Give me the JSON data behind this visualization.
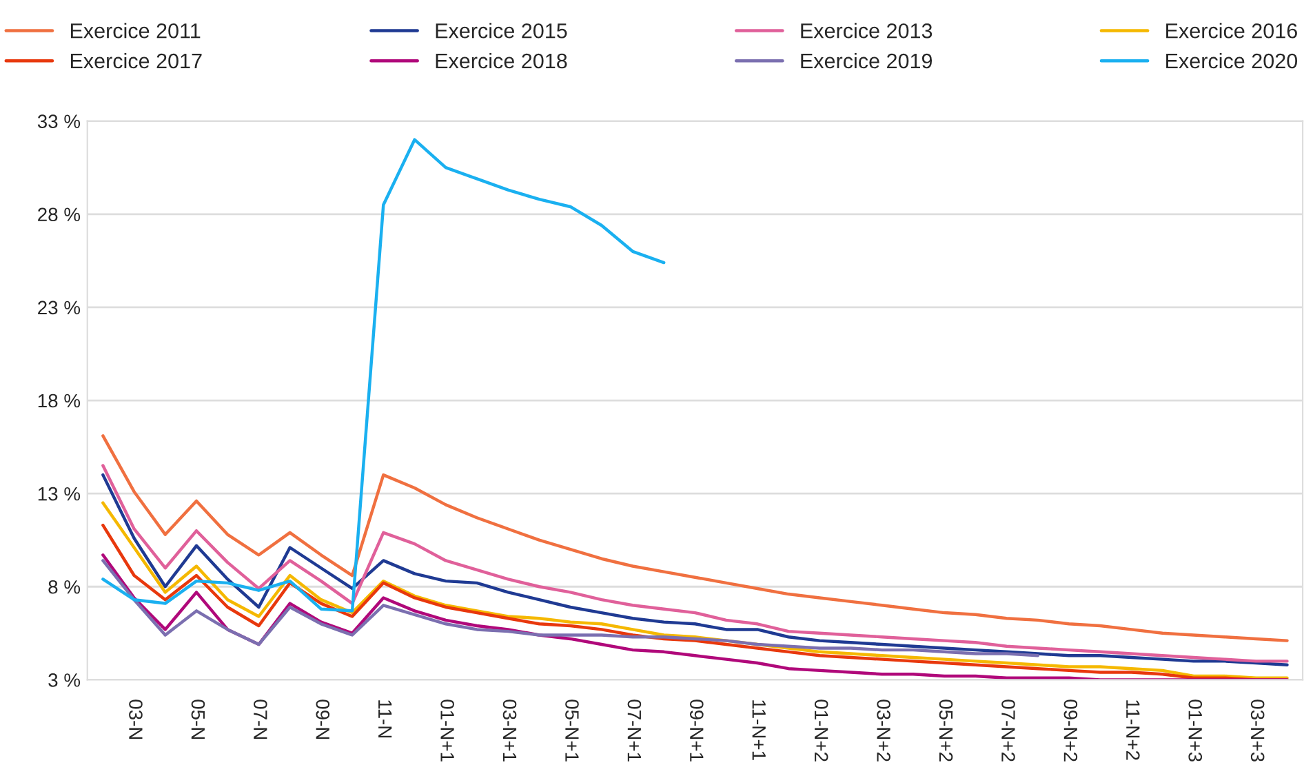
{
  "chart_data": {
    "type": "line",
    "categories": [
      null,
      "03-N",
      null,
      "05-N",
      null,
      "07-N",
      null,
      "09-N",
      null,
      "11-N",
      null,
      "01-N+1",
      null,
      "03-N+1",
      null,
      "05-N+1",
      null,
      "07-N+1",
      null,
      "09-N+1",
      null,
      "11-N+1",
      null,
      "01-N+2",
      null,
      "03-N+2",
      null,
      "05-N+2",
      null,
      "07-N+2",
      null,
      "09-N+2",
      null,
      "11-N+2",
      null,
      "01-N+3",
      null,
      "03-N+3",
      null
    ],
    "ylim": [
      3,
      33
    ],
    "yticks": [
      {
        "value": 3,
        "label": "3 %"
      },
      {
        "value": 8,
        "label": "8 %"
      },
      {
        "value": 13,
        "label": "13 %"
      },
      {
        "value": 18,
        "label": "18 %"
      },
      {
        "value": 23,
        "label": "23 %"
      },
      {
        "value": 28,
        "label": "28 %"
      },
      {
        "value": 33,
        "label": "33 %"
      }
    ],
    "grid": "y",
    "legend": "top",
    "marker": "none",
    "line_style": "solid",
    "series": [
      {
        "name": "Exercice 2011",
        "color": "#f07040",
        "values": [
          16.1,
          13.1,
          10.8,
          12.6,
          10.8,
          9.7,
          10.9,
          9.7,
          8.6,
          14.0,
          13.3,
          12.4,
          11.7,
          11.1,
          10.5,
          10.0,
          9.5,
          9.1,
          8.8,
          8.5,
          8.2,
          7.9,
          7.6,
          7.4,
          7.2,
          7.0,
          6.8,
          6.6,
          6.5,
          6.3,
          6.2,
          6.0,
          5.9,
          5.7,
          5.5,
          5.4,
          5.3,
          5.2,
          5.1
        ]
      },
      {
        "name": "Exercice 2015",
        "color": "#1f3a93",
        "values": [
          14.0,
          10.6,
          8.0,
          10.2,
          8.4,
          6.9,
          10.1,
          9.0,
          7.9,
          9.4,
          8.7,
          8.3,
          8.2,
          7.7,
          7.3,
          6.9,
          6.6,
          6.3,
          6.1,
          6.0,
          5.7,
          5.7,
          5.3,
          5.1,
          5.0,
          4.9,
          4.8,
          4.7,
          4.6,
          4.5,
          4.4,
          4.3,
          4.3,
          4.2,
          4.1,
          4.0,
          4.0,
          3.9,
          3.8
        ]
      },
      {
        "name": "Exercice 2013",
        "color": "#e0609a",
        "values": [
          14.5,
          11.1,
          9.0,
          11.0,
          9.3,
          7.9,
          9.4,
          8.3,
          7.1,
          10.9,
          10.3,
          9.4,
          8.9,
          8.4,
          8.0,
          7.7,
          7.3,
          7.0,
          6.8,
          6.6,
          6.2,
          6.0,
          5.6,
          5.5,
          5.4,
          5.3,
          5.2,
          5.1,
          5.0,
          4.8,
          4.7,
          4.6,
          4.5,
          4.4,
          4.3,
          4.2,
          4.1,
          4.0,
          4.0
        ]
      },
      {
        "name": "Exercice 2016",
        "color": "#f5b800",
        "values": [
          12.5,
          10.1,
          7.7,
          9.1,
          7.3,
          6.4,
          8.6,
          7.3,
          6.6,
          8.3,
          7.5,
          7.0,
          6.7,
          6.4,
          6.3,
          6.1,
          6.0,
          5.7,
          5.4,
          5.3,
          5.1,
          4.9,
          4.7,
          4.5,
          4.4,
          4.3,
          4.2,
          4.1,
          4.0,
          3.9,
          3.8,
          3.7,
          3.7,
          3.6,
          3.5,
          3.2,
          3.2,
          3.1,
          3.1
        ]
      },
      {
        "name": "Exercice 2017",
        "color": "#e8380d",
        "values": [
          11.3,
          8.6,
          7.3,
          8.6,
          6.9,
          5.9,
          8.2,
          7.1,
          6.4,
          8.2,
          7.4,
          6.9,
          6.6,
          6.3,
          6.0,
          5.9,
          5.7,
          5.4,
          5.2,
          5.1,
          4.9,
          4.7,
          4.5,
          4.3,
          4.2,
          4.1,
          4.0,
          3.9,
          3.8,
          3.7,
          3.6,
          3.5,
          3.4,
          3.4,
          3.3,
          3.1,
          3.1,
          3.0,
          3.0
        ]
      },
      {
        "name": "Exercice 2018",
        "color": "#b0087a",
        "values": [
          9.7,
          7.4,
          5.7,
          7.7,
          5.7,
          4.9,
          7.1,
          6.1,
          5.5,
          7.4,
          6.7,
          6.2,
          5.9,
          5.7,
          5.4,
          5.2,
          4.9,
          4.6,
          4.5,
          4.3,
          4.1,
          3.9,
          3.6,
          3.5,
          3.4,
          3.3,
          3.3,
          3.2,
          3.2,
          3.1,
          3.1,
          3.1,
          3.0,
          3.0,
          3.0,
          3.0,
          3.0,
          3.0,
          3.0
        ]
      },
      {
        "name": "Exercice 2019",
        "color": "#7b6fb0",
        "values": [
          9.4,
          7.3,
          5.4,
          6.7,
          5.7,
          4.9,
          6.9,
          6.0,
          5.4,
          7.0,
          6.5,
          6.0,
          5.7,
          5.6,
          5.4,
          5.4,
          5.4,
          5.3,
          5.3,
          5.2,
          5.1,
          4.9,
          4.8,
          4.7,
          4.7,
          4.6,
          4.6,
          4.5,
          4.4,
          4.4,
          4.3,
          null,
          null,
          null,
          null,
          null,
          null,
          null,
          null
        ]
      },
      {
        "name": "Exercice 2020",
        "color": "#1ab0f0",
        "values": [
          8.4,
          7.3,
          7.1,
          8.3,
          8.2,
          7.8,
          8.3,
          6.8,
          6.7,
          28.5,
          32.0,
          30.5,
          29.9,
          29.3,
          28.8,
          28.4,
          27.4,
          26.0,
          25.4,
          null,
          null,
          null,
          null,
          null,
          null,
          null,
          null,
          null,
          null,
          null,
          null,
          null,
          null,
          null,
          null,
          null,
          null,
          null,
          null
        ]
      }
    ]
  }
}
